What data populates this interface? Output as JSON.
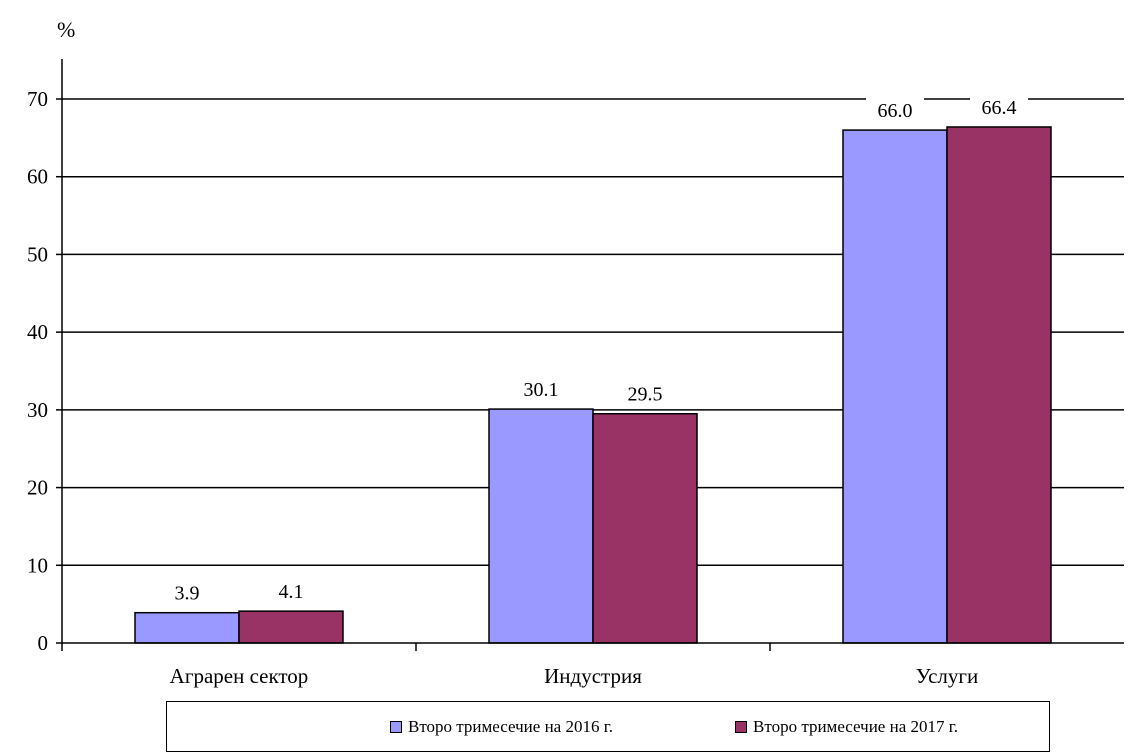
{
  "chart_data": {
    "type": "bar",
    "title_fragment": "",
    "ylabel": "%",
    "xlabel": "",
    "ylim": [
      0,
      70
    ],
    "yticks": [
      0,
      10,
      20,
      30,
      40,
      50,
      60,
      70
    ],
    "grid": true,
    "legend_position": "bottom",
    "categories": [
      "Аграрен сектор",
      "Индустрия",
      "Услуги"
    ],
    "series": [
      {
        "name": "Второ тримесечие на 2016 г.",
        "color": "#9999ff",
        "values": [
          3.9,
          30.1,
          66.0
        ],
        "labels": [
          "3.9",
          "30.1",
          "66.0"
        ]
      },
      {
        "name": "Второ тримесечие на 2017 г.",
        "color": "#993366",
        "values": [
          4.1,
          29.5,
          66.4
        ],
        "labels": [
          "4.1",
          "29.5",
          "66.4"
        ]
      }
    ]
  }
}
